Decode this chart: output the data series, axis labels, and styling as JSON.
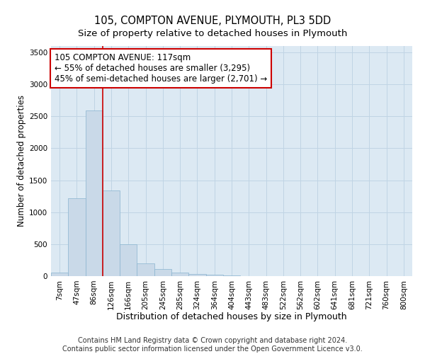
{
  "title1": "105, COMPTON AVENUE, PLYMOUTH, PL3 5DD",
  "title2": "Size of property relative to detached houses in Plymouth",
  "xlabel": "Distribution of detached houses by size in Plymouth",
  "ylabel": "Number of detached properties",
  "footnote": "Contains HM Land Registry data © Crown copyright and database right 2024.\nContains public sector information licensed under the Open Government Licence v3.0.",
  "categories": [
    "7sqm",
    "47sqm",
    "86sqm",
    "126sqm",
    "166sqm",
    "205sqm",
    "245sqm",
    "285sqm",
    "324sqm",
    "364sqm",
    "404sqm",
    "443sqm",
    "483sqm",
    "522sqm",
    "562sqm",
    "602sqm",
    "641sqm",
    "681sqm",
    "721sqm",
    "760sqm",
    "800sqm"
  ],
  "values": [
    50,
    1220,
    2590,
    1340,
    495,
    200,
    110,
    55,
    30,
    18,
    10,
    5,
    3,
    2,
    2,
    1,
    1,
    1,
    0,
    0,
    0
  ],
  "bar_color": "#c9d9e8",
  "bar_edge_color": "#8ab4d0",
  "property_line_color": "#cc0000",
  "annotation_text": "105 COMPTON AVENUE: 117sqm\n← 55% of detached houses are smaller (3,295)\n45% of semi-detached houses are larger (2,701) →",
  "annotation_box_color": "#cc0000",
  "ylim": [
    0,
    3600
  ],
  "yticks": [
    0,
    500,
    1000,
    1500,
    2000,
    2500,
    3000,
    3500
  ],
  "grid_color": "#c0d4e4",
  "bg_color": "#dce9f3",
  "title1_fontsize": 10.5,
  "title2_fontsize": 9.5,
  "xlabel_fontsize": 9,
  "ylabel_fontsize": 8.5,
  "footnote_fontsize": 7,
  "annotation_fontsize": 8.5,
  "tick_fontsize": 7.5
}
